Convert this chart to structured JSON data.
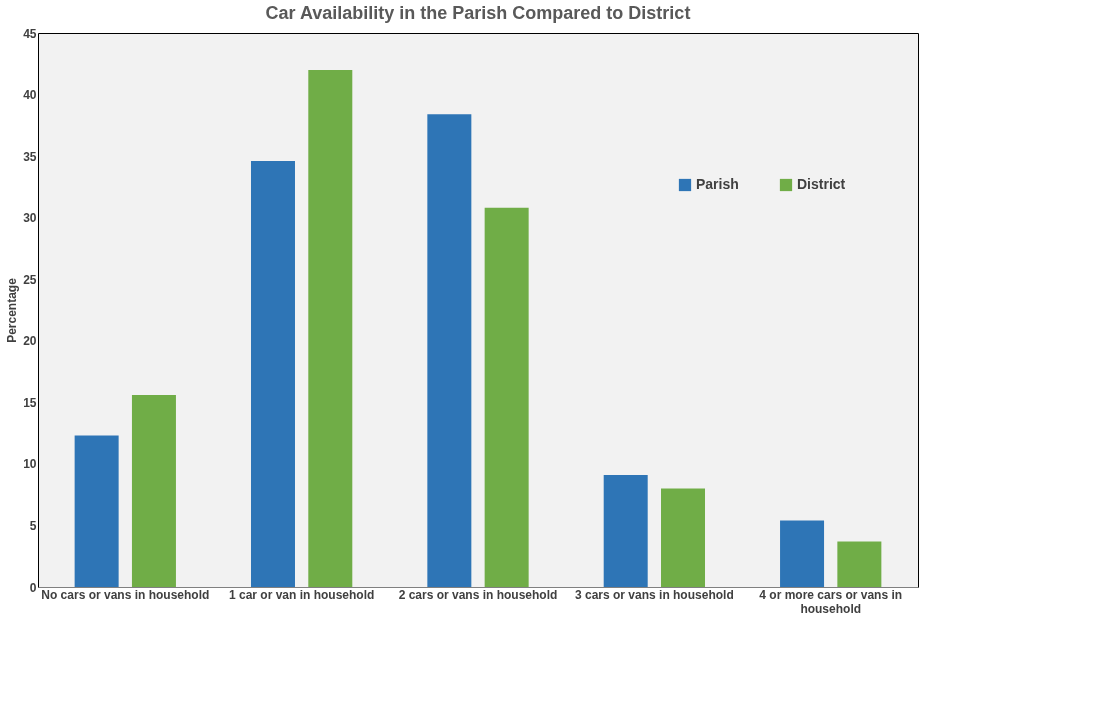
{
  "chart_data": {
    "type": "bar",
    "title": "Car Availability in the Parish Compared to District",
    "ylabel": "Percentage",
    "categories": [
      "No cars or vans in household",
      "1 car or van in household",
      "2 cars or vans in household",
      "3 cars or vans in household",
      "4 or more cars or vans in household"
    ],
    "series": [
      {
        "name": "Parish",
        "color": "#2e75b6",
        "values": [
          12.3,
          34.6,
          38.4,
          9.1,
          5.4
        ]
      },
      {
        "name": "District",
        "color": "#70ad47",
        "values": [
          15.6,
          42.0,
          30.8,
          8.0,
          3.7
        ]
      }
    ],
    "ylim": [
      0,
      45
    ],
    "yticks": [
      0,
      5,
      10,
      15,
      20,
      25,
      30,
      35,
      40,
      45
    ],
    "grid": false,
    "legend": "top right"
  }
}
